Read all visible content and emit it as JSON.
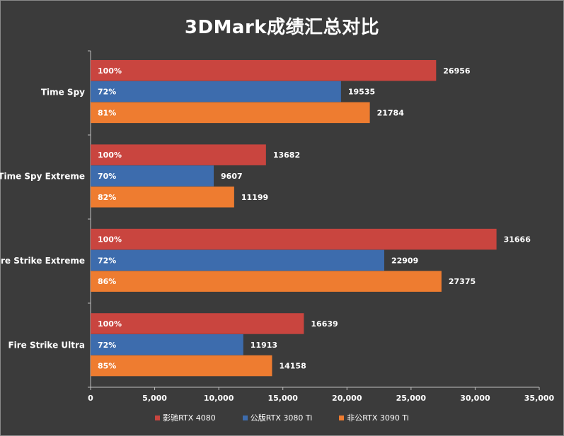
{
  "chart_data": {
    "type": "bar",
    "orientation": "horizontal",
    "title": "3DMark成绩汇总对比",
    "categories": [
      "Time Spy",
      "Time Spy Extreme",
      "Fire Strike Extreme",
      "Fire Strike Ultra"
    ],
    "series": [
      {
        "name": "影驰RTX 4080",
        "color": "#c9453f",
        "values": [
          26956,
          13682,
          31666,
          16639
        ],
        "pct_labels": [
          "100%",
          "100%",
          "100%",
          "100%"
        ]
      },
      {
        "name": "公版RTX 3080 Ti",
        "color": "#3d6cad",
        "values": [
          19535,
          9607,
          22909,
          11913
        ],
        "pct_labels": [
          "72%",
          "70%",
          "72%",
          "72%"
        ]
      },
      {
        "name": "非公RTX 3090 Ti",
        "color": "#ee7c30",
        "values": [
          21784,
          11199,
          27375,
          14158
        ],
        "pct_labels": [
          "81%",
          "82%",
          "86%",
          "85%"
        ]
      }
    ],
    "xlim": [
      0,
      35000
    ],
    "xticks": [
      0,
      5000,
      10000,
      15000,
      20000,
      25000,
      30000,
      35000
    ],
    "xtick_labels": [
      "0",
      "5,000",
      "10,000",
      "15,000",
      "20,000",
      "25,000",
      "30,000",
      "35,000"
    ],
    "grid": false,
    "legend_position": "bottom"
  }
}
